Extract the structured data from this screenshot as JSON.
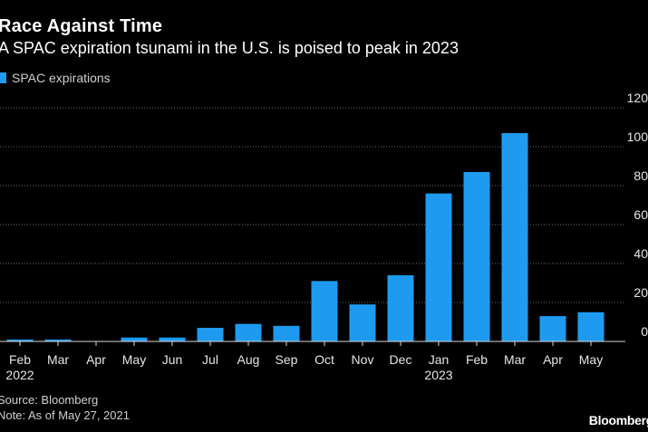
{
  "header": {
    "title": "Race Against Time",
    "subtitle": "A SPAC expiration tsunami in the U.S. is poised to peak in 2023"
  },
  "legend": {
    "label": "SPAC expirations",
    "color": "#1e9bf0"
  },
  "footer": {
    "source": "Source: Bloomberg",
    "note": "Note: As of May 27, 2021",
    "brand": "Bloomberg"
  },
  "chart_data": {
    "type": "bar",
    "categories": [
      "Feb",
      "Mar",
      "Apr",
      "May",
      "Jun",
      "Jul",
      "Aug",
      "Sep",
      "Oct",
      "Nov",
      "Dec",
      "Jan",
      "Feb",
      "Mar",
      "Apr",
      "May"
    ],
    "year_labels": [
      {
        "index": 0,
        "label": "2022"
      },
      {
        "index": 11,
        "label": "2023"
      }
    ],
    "series": [
      {
        "name": "SPAC expirations",
        "values": [
          1,
          1,
          0,
          2,
          2,
          7,
          9,
          8,
          31,
          19,
          34,
          76,
          87,
          107,
          13,
          15
        ]
      }
    ],
    "yticks": [
      0,
      20,
      40,
      60,
      80,
      100,
      120
    ],
    "ylim": [
      0,
      120
    ],
    "grid": true,
    "axis_side": "right",
    "bar_color": "#1e9bf0",
    "grid_color": "#6b6b6b",
    "legend_position": "top-left"
  }
}
